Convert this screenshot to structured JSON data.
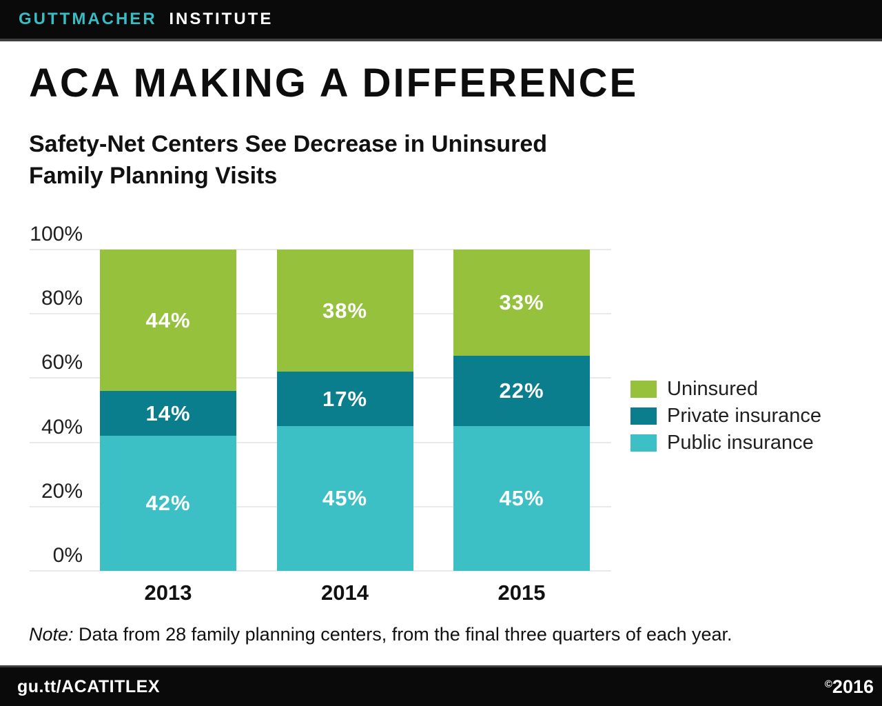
{
  "header": {
    "brand_primary": "GUTTMACHER",
    "brand_secondary": "INSTITUTE"
  },
  "title": "ACA MAKING A DIFFERENCE",
  "subtitle": {
    "lines": [
      "Safety-Net Centers See Decrease in Uninsured",
      "Family Planning Visits"
    ]
  },
  "chart_data": {
    "type": "bar",
    "stacked": true,
    "categories": [
      "2013",
      "2014",
      "2015"
    ],
    "series": [
      {
        "name": "Public insurance",
        "color": "#3cbfc5",
        "values": [
          42,
          45,
          45
        ]
      },
      {
        "name": "Private insurance",
        "color": "#0a7e8c",
        "values": [
          14,
          17,
          22
        ]
      },
      {
        "name": "Uninsured",
        "color": "#96c13d",
        "values": [
          44,
          38,
          33
        ]
      }
    ],
    "legend_order_top_to_bottom": [
      "Uninsured",
      "Private insurance",
      "Public insurance"
    ],
    "value_labels": true,
    "value_suffix": "%",
    "y_ticks": [
      0,
      20,
      40,
      60,
      80,
      100
    ],
    "y_tick_suffix": "%",
    "ylim": [
      0,
      100
    ],
    "grid": true,
    "legend_position": "right"
  },
  "note": {
    "prefix": "Note:",
    "body": " Data from 28 family planning centers, from the final three quarters of each year."
  },
  "footer": {
    "link": "gu.tt/ACATITLEX",
    "copyright_symbol": "©",
    "year": "2016"
  },
  "colors": {
    "brand_teal": "#3abcc5",
    "bar_green": "#96c13d",
    "bar_dark_teal": "#0a7e8c",
    "bar_light_teal": "#3cbfc5",
    "gridline": "#e9e9e9",
    "bar_background": "#0a0a0a"
  }
}
